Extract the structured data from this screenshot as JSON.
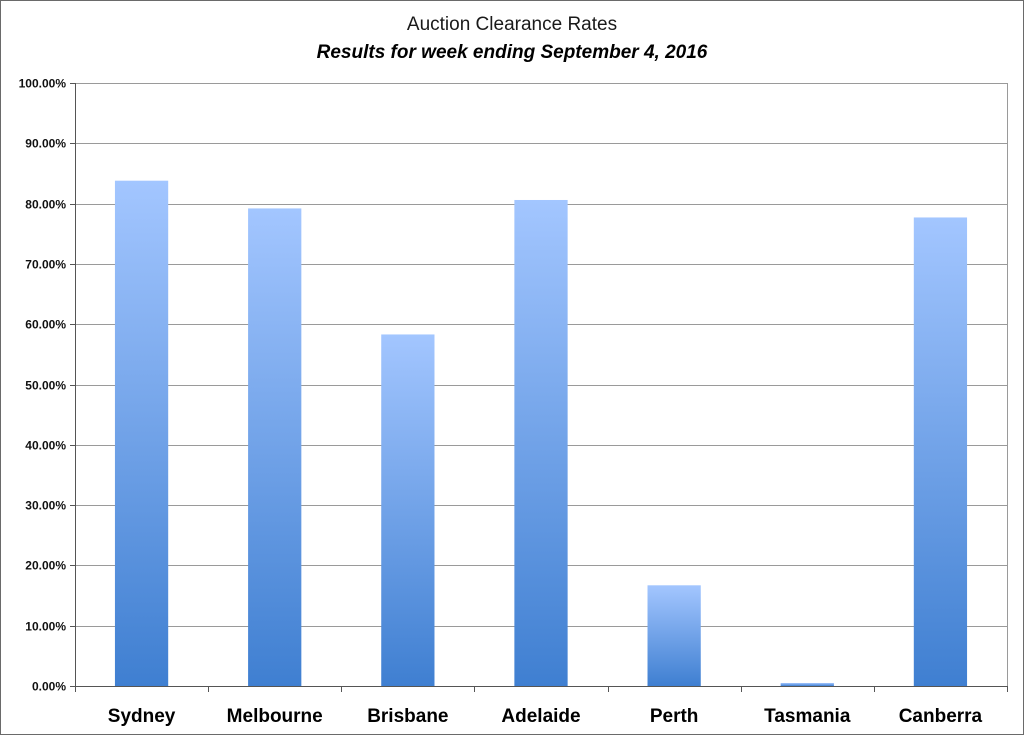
{
  "chart_data": {
    "type": "bar",
    "title": "Auction Clearance Rates",
    "subtitle": "Results for week ending September 4, 2016",
    "xlabel": "",
    "ylabel": "",
    "categories": [
      "Sydney",
      "Melbourne",
      "Brisbane",
      "Adelaide",
      "Perth",
      "Tasmania",
      "Canberra"
    ],
    "values": [
      83.8,
      79.2,
      58.3,
      80.6,
      16.7,
      0.5,
      77.7
    ],
    "ylim": [
      0,
      100
    ],
    "yticks": [
      0,
      10,
      20,
      30,
      40,
      50,
      60,
      70,
      80,
      90,
      100
    ],
    "ytick_labels": [
      "0.00%",
      "10.00%",
      "20.00%",
      "30.00%",
      "40.00%",
      "50.00%",
      "60.00%",
      "70.00%",
      "80.00%",
      "90.00%",
      "100.00%"
    ],
    "grid": true,
    "legend": "none",
    "colors": {
      "bar_top": "#a3c6ff",
      "bar_bottom": "#3f7fd1",
      "grid": "#9a9a9a",
      "axis": "#555555"
    }
  }
}
